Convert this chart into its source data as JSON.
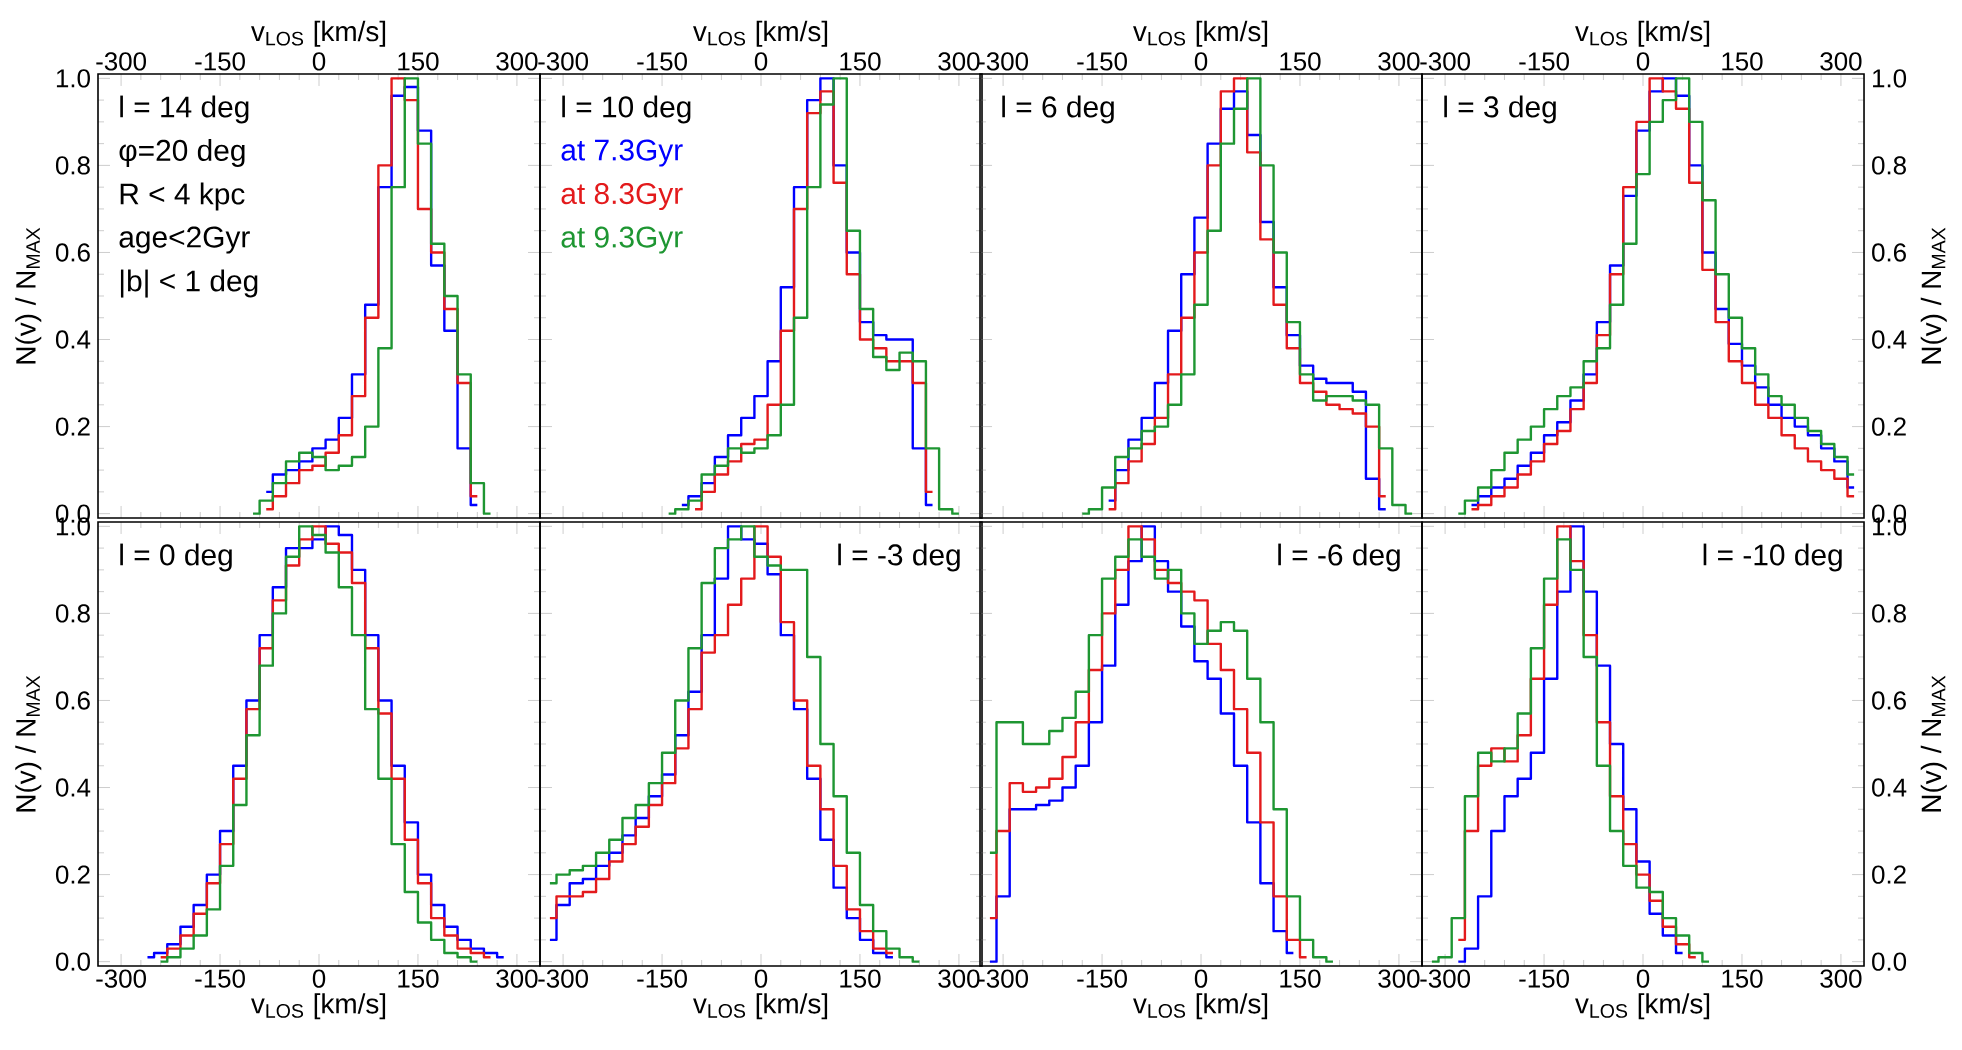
{
  "chart_data": [
    {
      "type": "step",
      "xlabel": "v$_{LOS}$ [km/s]",
      "ylabel": "N(v) / N$_{MAX}$",
      "xlim": [
        -335,
        335
      ],
      "xticks": [
        -300,
        -150,
        0,
        150,
        300
      ],
      "ylim": [
        -0.01,
        1.01
      ],
      "yticks": [
        {
          "value": 0,
          "label": "0.0"
        },
        {
          "value": 0.2,
          "label": "0.2"
        },
        {
          "value": 0.4,
          "label": "0.4"
        },
        {
          "value": 0.6,
          "label": "0.6"
        },
        {
          "value": 0.8,
          "label": "0.8"
        },
        {
          "value": 1,
          "label": "1.0"
        }
      ],
      "annotations": [
        "l = 14 deg",
        "φ=20 deg",
        "R < 4 kpc",
        "age<2Gyr",
        "|b| < 1 deg"
      ],
      "x": [
        -100,
        -80,
        -60,
        -40,
        -20,
        0,
        20,
        40,
        60,
        80,
        100,
        120,
        140,
        160,
        180,
        200,
        220,
        240,
        260
      ],
      "series": [
        {
          "color": "#0000ff",
          "values": [
            null,
            0.05,
            0.09,
            0.1,
            0.12,
            0.15,
            0.17,
            0.22,
            0.32,
            0.48,
            0.75,
            0.96,
            0.98,
            0.88,
            0.57,
            0.42,
            0.15,
            0.02,
            null
          ]
        },
        {
          "color": "#e31a1c",
          "values": [
            null,
            0.01,
            0.04,
            0.07,
            0.1,
            0.11,
            0.14,
            0.18,
            0.27,
            0.45,
            0.8,
            1.0,
            0.95,
            0.7,
            0.6,
            0.47,
            0.3,
            0.04,
            null
          ]
        },
        {
          "color": "#1e9632",
          "values": [
            0,
            0.03,
            0.07,
            0.12,
            0.14,
            0.13,
            0.1,
            0.11,
            0.13,
            0.2,
            0.38,
            0.75,
            1.0,
            0.85,
            0.62,
            0.5,
            0.32,
            0.07,
            0
          ]
        }
      ]
    },
    {
      "type": "step",
      "xlabel": "v$_{LOS}$ [km/s]",
      "xlim": [
        -335,
        335
      ],
      "xticks": [
        -300,
        -150,
        0,
        150,
        300
      ],
      "ylim": [
        -0.01,
        1.01
      ],
      "yticks": [
        0,
        0.2,
        0.4,
        0.6,
        0.8,
        1
      ],
      "tick_labels": "x",
      "legend": "top left",
      "annotations": [
        "l = 10 deg"
      ],
      "x": [
        -140,
        -120,
        -100,
        -80,
        -60,
        -40,
        -20,
        0,
        20,
        40,
        60,
        80,
        100,
        120,
        140,
        160,
        180,
        200,
        220,
        240,
        260,
        280,
        300
      ],
      "series": [
        {
          "name": "at 7.3Gyr",
          "color": "#0000ff",
          "values": [
            null,
            0.02,
            0.04,
            0.07,
            0.13,
            0.18,
            0.22,
            0.27,
            0.35,
            0.52,
            0.75,
            0.95,
            1.0,
            0.8,
            0.6,
            0.44,
            0.41,
            0.4,
            0.4,
            0.15,
            0.02,
            null,
            null
          ]
        },
        {
          "name": "at 8.3Gyr",
          "color": "#e31a1c",
          "values": [
            null,
            null,
            0.01,
            0.05,
            0.09,
            0.12,
            0.16,
            0.17,
            0.25,
            0.42,
            0.7,
            0.92,
            0.97,
            0.76,
            0.55,
            0.4,
            0.38,
            0.35,
            0.35,
            0.3,
            0.05,
            null,
            null
          ]
        },
        {
          "name": "at 9.3Gyr",
          "color": "#1e9632",
          "values": [
            0,
            0.01,
            0.03,
            0.09,
            0.11,
            0.15,
            0.14,
            0.15,
            0.18,
            0.25,
            0.45,
            0.75,
            0.94,
            1.0,
            0.65,
            0.47,
            0.36,
            0.33,
            0.37,
            0.35,
            0.15,
            0.01,
            0
          ]
        }
      ]
    },
    {
      "type": "step",
      "xlabel": "v$_{LOS}$ [km/s]",
      "xlim": [
        -335,
        335
      ],
      "xticks": [
        -300,
        -150,
        0,
        150,
        300
      ],
      "ylim": [
        -0.01,
        1.01
      ],
      "yticks": [
        0,
        0.2,
        0.4,
        0.6,
        0.8,
        1
      ],
      "tick_labels": "x",
      "annotations": [
        "l = 6 deg"
      ],
      "x": [
        -180,
        -160,
        -140,
        -120,
        -100,
        -80,
        -60,
        -40,
        -20,
        0,
        20,
        40,
        60,
        80,
        100,
        120,
        140,
        160,
        180,
        200,
        220,
        240,
        260,
        280,
        300,
        320
      ],
      "series": [
        {
          "color": "#0000ff",
          "values": [
            null,
            null,
            0.03,
            0.1,
            0.17,
            0.22,
            0.3,
            0.42,
            0.55,
            0.68,
            0.85,
            0.93,
            0.97,
            0.87,
            0.67,
            0.52,
            0.41,
            0.34,
            0.31,
            0.3,
            0.3,
            0.28,
            0.08,
            0.01,
            null,
            null
          ]
        },
        {
          "color": "#e31a1c",
          "values": [
            null,
            null,
            0.01,
            0.07,
            0.12,
            0.16,
            0.22,
            0.32,
            0.45,
            0.6,
            0.8,
            0.97,
            1.0,
            0.83,
            0.63,
            0.48,
            0.38,
            0.3,
            0.28,
            0.25,
            0.24,
            0.23,
            0.2,
            0.04,
            null,
            null
          ]
        },
        {
          "color": "#1e9632",
          "values": [
            0,
            0.01,
            0.06,
            0.13,
            0.15,
            0.19,
            0.2,
            0.25,
            0.32,
            0.48,
            0.65,
            0.85,
            0.93,
            1.0,
            0.8,
            0.6,
            0.44,
            0.32,
            0.26,
            0.27,
            0.27,
            0.26,
            0.25,
            0.15,
            0.02,
            0
          ]
        }
      ]
    },
    {
      "type": "step",
      "xlabel": "v$_{LOS}$ [km/s]",
      "y2label": "N(v) / N$_{MAX}$",
      "xlim": [
        -335,
        335
      ],
      "xticks": [
        -300,
        -150,
        0,
        150,
        300
      ],
      "y2lim": [
        -0.01,
        1.01
      ],
      "y2ticks": [
        {
          "value": 0,
          "label": "0.0"
        },
        {
          "value": 0.2,
          "label": "0.2"
        },
        {
          "value": 0.4,
          "label": "0.4"
        },
        {
          "value": 0.6,
          "label": "0.6"
        },
        {
          "value": 0.8,
          "label": "0.8"
        },
        {
          "value": 1,
          "label": "1.0"
        }
      ],
      "annotations": [
        "l = 3 deg"
      ],
      "x": [
        -280,
        -260,
        -240,
        -220,
        -200,
        -180,
        -160,
        -140,
        -120,
        -100,
        -80,
        -60,
        -40,
        -20,
        0,
        20,
        40,
        60,
        80,
        100,
        120,
        140,
        160,
        180,
        200,
        220,
        240,
        260,
        280,
        300,
        320
      ],
      "series": [
        {
          "axis": "y2",
          "color": "#0000ff",
          "values": [
            null,
            0.02,
            0.04,
            0.06,
            0.08,
            0.11,
            0.14,
            0.18,
            0.21,
            0.26,
            0.32,
            0.44,
            0.57,
            0.73,
            0.88,
            0.97,
            1.0,
            0.96,
            0.8,
            0.6,
            0.47,
            0.39,
            0.34,
            0.29,
            0.25,
            0.22,
            0.2,
            0.18,
            0.15,
            0.12,
            0.06
          ]
        },
        {
          "axis": "y2",
          "color": "#e31a1c",
          "values": [
            null,
            0.01,
            0.02,
            0.04,
            0.06,
            0.09,
            0.12,
            0.16,
            0.19,
            0.24,
            0.3,
            0.41,
            0.55,
            0.75,
            0.9,
            1.0,
            0.97,
            0.93,
            0.76,
            0.56,
            0.44,
            0.35,
            0.3,
            0.25,
            0.22,
            0.18,
            0.15,
            0.12,
            0.1,
            0.08,
            0.04
          ]
        },
        {
          "axis": "y2",
          "color": "#1e9632",
          "values": [
            0,
            0.03,
            0.06,
            0.1,
            0.14,
            0.17,
            0.2,
            0.24,
            0.27,
            0.29,
            0.35,
            0.38,
            0.48,
            0.62,
            0.78,
            0.9,
            0.95,
            1.0,
            0.9,
            0.72,
            0.55,
            0.45,
            0.38,
            0.32,
            0.27,
            0.25,
            0.22,
            0.19,
            0.16,
            0.13,
            0.09
          ]
        }
      ]
    },
    {
      "type": "step",
      "xlabel": "v$_{LOS}$ [km/s]",
      "ylabel": "N(v) / N$_{MAX}$",
      "xlim": [
        -335,
        335
      ],
      "xticks": [
        -300,
        -150,
        0,
        150,
        300
      ],
      "ylim": [
        -0.01,
        1.01
      ],
      "yticks": [
        {
          "value": 0,
          "label": "0.0"
        },
        {
          "value": 0.2,
          "label": "0.2"
        },
        {
          "value": 0.4,
          "label": "0.4"
        },
        {
          "value": 0.6,
          "label": "0.6"
        },
        {
          "value": 0.8,
          "label": "0.8"
        },
        {
          "value": 1,
          "label": "1.0"
        }
      ],
      "annotations": [
        "l = 0 deg"
      ],
      "x": [
        -260,
        -240,
        -220,
        -200,
        -180,
        -160,
        -140,
        -120,
        -100,
        -80,
        -60,
        -40,
        -20,
        0,
        20,
        40,
        60,
        80,
        100,
        120,
        140,
        160,
        180,
        200,
        220,
        240,
        260,
        280
      ],
      "series": [
        {
          "color": "#0000ff",
          "values": [
            0.01,
            0.02,
            0.04,
            0.08,
            0.13,
            0.2,
            0.3,
            0.45,
            0.6,
            0.75,
            0.86,
            0.95,
            0.95,
            0.97,
            1.0,
            0.98,
            0.9,
            0.75,
            0.6,
            0.45,
            0.32,
            0.2,
            0.13,
            0.08,
            0.05,
            0.03,
            0.02,
            0.01
          ]
        },
        {
          "color": "#e31a1c",
          "values": [
            null,
            0.01,
            0.03,
            0.06,
            0.11,
            0.18,
            0.27,
            0.42,
            0.58,
            0.72,
            0.83,
            0.91,
            0.97,
            1.0,
            0.96,
            0.94,
            0.87,
            0.72,
            0.57,
            0.42,
            0.28,
            0.18,
            0.1,
            0.06,
            0.03,
            0.02,
            0.01,
            null
          ]
        },
        {
          "color": "#1e9632",
          "values": [
            null,
            0,
            0.01,
            0.03,
            0.06,
            0.12,
            0.22,
            0.36,
            0.52,
            0.68,
            0.8,
            0.93,
            1.0,
            0.98,
            0.94,
            0.86,
            0.75,
            0.58,
            0.42,
            0.27,
            0.16,
            0.09,
            0.05,
            0.02,
            0.01,
            0,
            null,
            null
          ]
        }
      ]
    },
    {
      "type": "step",
      "xlabel": "v$_{LOS}$ [km/s]",
      "xlim": [
        -335,
        335
      ],
      "xticks": [
        -300,
        -150,
        0,
        150,
        300
      ],
      "ylim": [
        -0.01,
        1.01
      ],
      "yticks": [
        0,
        0.2,
        0.4,
        0.6,
        0.8,
        1
      ],
      "tick_labels": "x",
      "annotations": [
        "l = -3 deg"
      ],
      "x": [
        -320,
        -300,
        -280,
        -260,
        -240,
        -220,
        -200,
        -180,
        -160,
        -140,
        -120,
        -100,
        -80,
        -60,
        -40,
        -20,
        0,
        20,
        40,
        60,
        80,
        100,
        120,
        140,
        160,
        180,
        200,
        220,
        240
      ],
      "series": [
        {
          "color": "#0000ff",
          "values": [
            0.05,
            0.13,
            0.18,
            0.19,
            0.22,
            0.25,
            0.29,
            0.33,
            0.38,
            0.43,
            0.52,
            0.62,
            0.75,
            0.88,
            1.0,
            0.97,
            0.96,
            0.89,
            0.75,
            0.58,
            0.42,
            0.28,
            0.17,
            0.1,
            0.05,
            0.02,
            0.01,
            null,
            null
          ]
        },
        {
          "color": "#e31a1c",
          "values": [
            0.1,
            0.15,
            0.15,
            0.16,
            0.19,
            0.23,
            0.27,
            0.31,
            0.36,
            0.41,
            0.49,
            0.58,
            0.71,
            0.75,
            0.82,
            0.88,
            1.0,
            0.93,
            0.78,
            0.6,
            0.45,
            0.35,
            0.22,
            0.12,
            0.07,
            0.03,
            0.02,
            null,
            null
          ]
        },
        {
          "color": "#1e9632",
          "values": [
            0.18,
            0.2,
            0.21,
            0.22,
            0.25,
            0.28,
            0.33,
            0.36,
            0.41,
            0.48,
            0.6,
            0.72,
            0.87,
            0.95,
            0.97,
            1.0,
            0.93,
            0.91,
            0.9,
            0.9,
            0.7,
            0.5,
            0.38,
            0.25,
            0.13,
            0.07,
            0.03,
            0.01,
            0
          ]
        }
      ]
    },
    {
      "type": "step",
      "xlabel": "v$_{LOS}$ [km/s]",
      "xlim": [
        -335,
        335
      ],
      "xticks": [
        -300,
        -150,
        0,
        150,
        300
      ],
      "ylim": [
        -0.01,
        1.01
      ],
      "yticks": [
        0,
        0.2,
        0.4,
        0.6,
        0.8,
        1
      ],
      "tick_labels": "x",
      "annotations": [
        "l = -6 deg"
      ],
      "x": [
        -320,
        -300,
        -280,
        -260,
        -240,
        -220,
        -200,
        -180,
        -160,
        -140,
        -120,
        -100,
        -80,
        -60,
        -40,
        -20,
        0,
        20,
        40,
        60,
        80,
        100,
        120,
        140,
        160,
        180,
        200
      ],
      "series": [
        {
          "color": "#0000ff",
          "values": [
            0,
            0.15,
            0.35,
            0.35,
            0.36,
            0.37,
            0.4,
            0.45,
            0.55,
            0.68,
            0.82,
            0.92,
            1.0,
            0.92,
            0.85,
            0.77,
            0.69,
            0.65,
            0.57,
            0.45,
            0.32,
            0.18,
            0.07,
            0.02,
            null,
            null,
            null
          ]
        },
        {
          "color": "#e31a1c",
          "values": [
            0.1,
            0.3,
            0.41,
            0.39,
            0.4,
            0.42,
            0.47,
            0.55,
            0.67,
            0.8,
            0.9,
            1.0,
            0.97,
            0.9,
            0.87,
            0.85,
            0.83,
            0.73,
            0.67,
            0.58,
            0.48,
            0.32,
            0.15,
            0.05,
            0.01,
            null,
            null
          ]
        },
        {
          "color": "#1e9632",
          "values": [
            0.25,
            0.55,
            0.55,
            0.5,
            0.5,
            0.53,
            0.56,
            0.62,
            0.75,
            0.88,
            0.93,
            0.97,
            0.93,
            0.88,
            0.9,
            0.8,
            0.73,
            0.76,
            0.78,
            0.76,
            0.65,
            0.55,
            0.35,
            0.15,
            0.05,
            0.01,
            0
          ]
        }
      ]
    },
    {
      "type": "step",
      "xlabel": "v$_{LOS}$ [km/s]",
      "y2label": "N(v) / N$_{MAX}$",
      "xlim": [
        -335,
        335
      ],
      "xticks": [
        -300,
        -150,
        0,
        150,
        300
      ],
      "y2lim": [
        -0.01,
        1.01
      ],
      "y2ticks": [
        {
          "value": 0,
          "label": "0.0"
        },
        {
          "value": 0.2,
          "label": "0.2"
        },
        {
          "value": 0.4,
          "label": "0.4"
        },
        {
          "value": 0.6,
          "label": "0.6"
        },
        {
          "value": 0.8,
          "label": "0.8"
        },
        {
          "value": 1,
          "label": "1.0"
        }
      ],
      "annotations": [
        "l = -10 deg"
      ],
      "x": [
        -320,
        -300,
        -280,
        -260,
        -240,
        -220,
        -200,
        -180,
        -160,
        -140,
        -120,
        -100,
        -80,
        -60,
        -40,
        -20,
        0,
        20,
        40,
        60,
        80,
        100
      ],
      "series": [
        {
          "axis": "y2",
          "color": "#0000ff",
          "values": [
            null,
            null,
            0,
            0.03,
            0.15,
            0.3,
            0.38,
            0.42,
            0.48,
            0.65,
            0.85,
            1.0,
            0.85,
            0.68,
            0.5,
            0.35,
            0.23,
            0.11,
            0.06,
            0.02,
            null,
            null
          ]
        },
        {
          "axis": "y2",
          "color": "#e31a1c",
          "values": [
            null,
            null,
            0.05,
            0.3,
            0.45,
            0.49,
            0.46,
            0.52,
            0.65,
            0.82,
            1.0,
            0.92,
            0.75,
            0.55,
            0.38,
            0.27,
            0.2,
            0.14,
            0.08,
            0.04,
            0.01,
            null
          ]
        },
        {
          "axis": "y2",
          "color": "#1e9632",
          "values": [
            0,
            0.01,
            0.1,
            0.38,
            0.48,
            0.46,
            0.49,
            0.57,
            0.72,
            0.88,
            0.97,
            0.9,
            0.7,
            0.45,
            0.3,
            0.22,
            0.17,
            0.16,
            0.1,
            0.06,
            0.02,
            0
          ]
        }
      ]
    }
  ]
}
